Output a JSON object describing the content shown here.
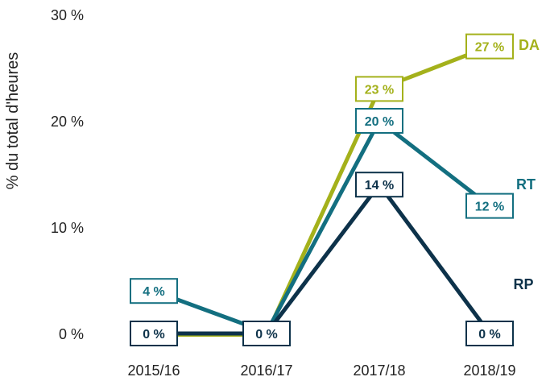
{
  "chart_data": {
    "type": "line",
    "title": "",
    "xlabel": "",
    "ylabel": "% du total d'heures",
    "categories": [
      "2015/16",
      "2016/17",
      "2017/18",
      "2018/19"
    ],
    "ylim": [
      0,
      30
    ],
    "yticks": [
      0,
      10,
      20,
      30
    ],
    "ytick_labels": [
      "0 %",
      "10 %",
      "20 %",
      "30 %"
    ],
    "grid": false,
    "legend": "inline labels at right end of each series",
    "series": [
      {
        "name": "DA",
        "color": "#a4b11b",
        "values": [
          0,
          0,
          23,
          27
        ],
        "point_labels": [
          null,
          null,
          "23 %",
          "27 %"
        ]
      },
      {
        "name": "RT",
        "color": "#136f80",
        "values": [
          4,
          0,
          20,
          12
        ],
        "point_labels": [
          "4 %",
          null,
          "20 %",
          "12 %"
        ]
      },
      {
        "name": "RP",
        "color": "#0d324a",
        "values": [
          0,
          0,
          14,
          0
        ],
        "point_labels": [
          "0 %",
          "0 %",
          "14 %",
          "0 %"
        ]
      }
    ]
  }
}
